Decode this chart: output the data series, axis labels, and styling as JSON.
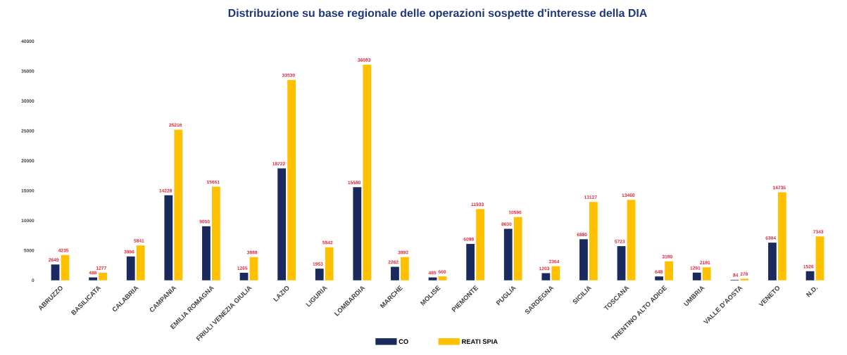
{
  "chart_data": {
    "type": "bar",
    "title": "Distribuzione su base regionale delle operazioni sospette d'interesse della DIA",
    "categories": [
      "ABRUZZO",
      "BASILICATA",
      "CALABRIA",
      "CAMPANIA",
      "EMILIA ROMAGNA",
      "FRIULI VENEZIA GIULIA",
      "LAZIO",
      "LIGURIA",
      "LOMBARDIA",
      "MARCHE",
      "MOLISE",
      "PIEMONTE",
      "PUGLIA",
      "SARDEGNA",
      "SICILIA",
      "TOSCANA",
      "TRENTINO ALTO ADIGE",
      "UMBRIA",
      "VALLE D'AOSTA",
      "VENETO",
      "N.D."
    ],
    "series": [
      {
        "name": "CO",
        "color": "#1b2a5e",
        "values": [
          2649,
          488,
          3996,
          14228,
          9050,
          1265,
          18722,
          1953,
          15580,
          2262,
          485,
          6098,
          8630,
          1203,
          6880,
          5723,
          648,
          1291,
          84,
          6304,
          1526
        ]
      },
      {
        "name": "REATI SPIA",
        "color": "#ffc000",
        "values": [
          4235,
          1277,
          5841,
          25216,
          15661,
          3888,
          33530,
          5542,
          36083,
          3892,
          660,
          11933,
          10596,
          2364,
          13127,
          13460,
          3180,
          2181,
          278,
          14735,
          7343
        ]
      }
    ],
    "ylim": [
      0,
      40000
    ],
    "yticks": [
      0,
      5000,
      10000,
      15000,
      20000,
      25000,
      30000,
      35000,
      40000
    ],
    "data_labels": true,
    "legend": "bottom"
  }
}
